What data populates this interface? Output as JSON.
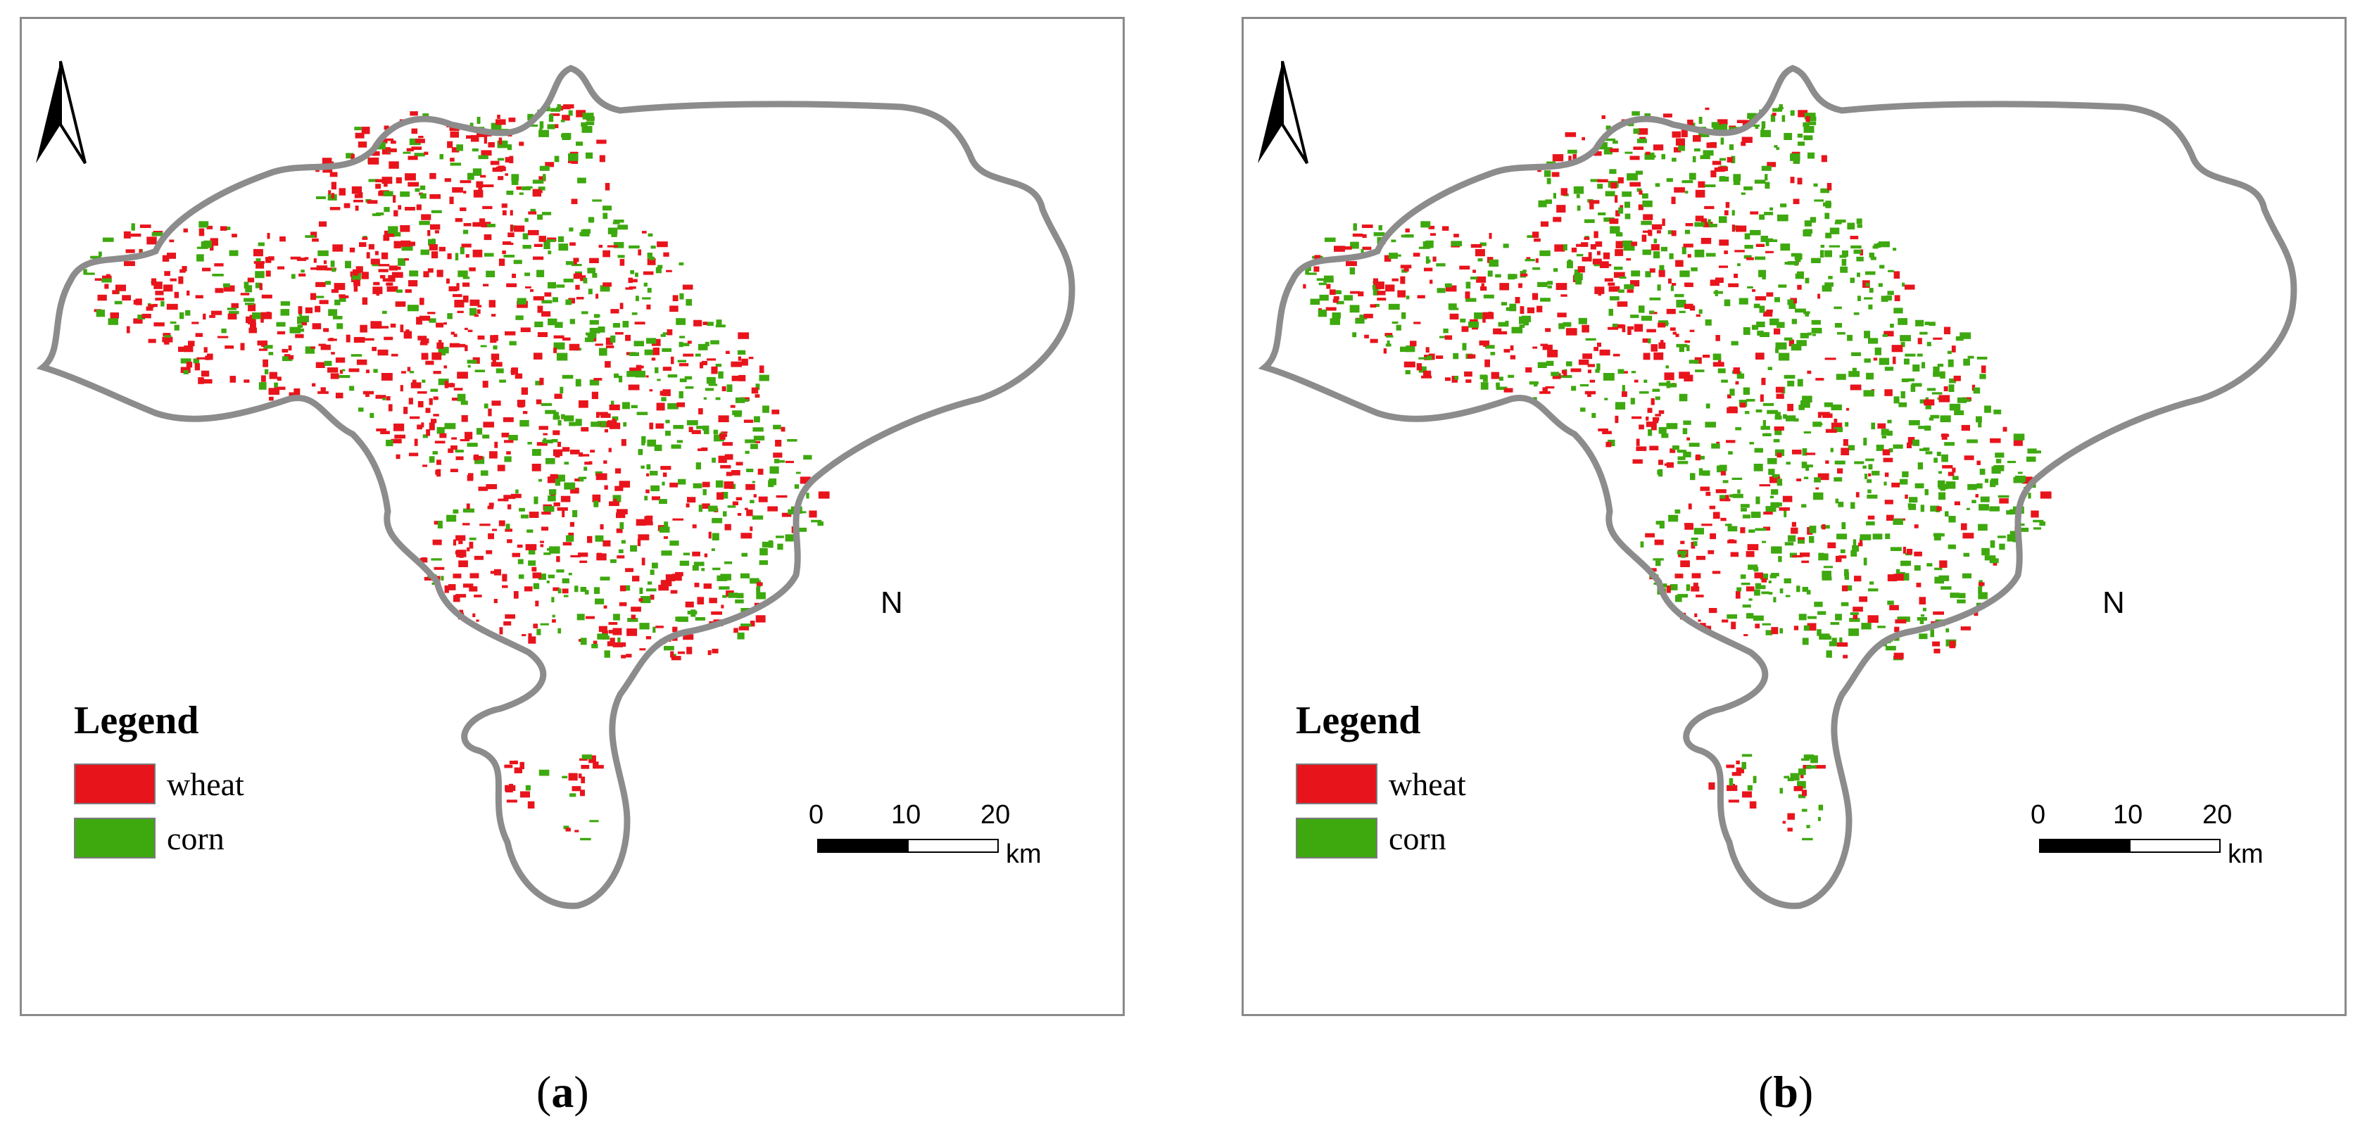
{
  "panels": [
    {
      "id": "a",
      "legend": {
        "title": "Legend",
        "items": [
          {
            "label": "wheat",
            "color": "#e8141c"
          },
          {
            "label": "corn",
            "color": "#3ea80f"
          }
        ]
      },
      "north_label": "N",
      "scale": {
        "ticks": [
          "0",
          "10",
          "20"
        ],
        "unit": "km"
      },
      "caption_letter": "a",
      "wheat_share": 0.6
    },
    {
      "id": "b",
      "legend": {
        "title": "Legend",
        "items": [
          {
            "label": "wheat",
            "color": "#e8141c"
          },
          {
            "label": "corn",
            "color": "#3ea80f"
          }
        ]
      },
      "north_label": "N",
      "scale": {
        "ticks": [
          "0",
          "10",
          "20"
        ],
        "unit": "km"
      },
      "caption_letter": "b",
      "wheat_share": 0.35
    }
  ],
  "colors": {
    "wheat": "#e8141c",
    "corn": "#3ea80f",
    "boundary": "#8c8c8c"
  }
}
